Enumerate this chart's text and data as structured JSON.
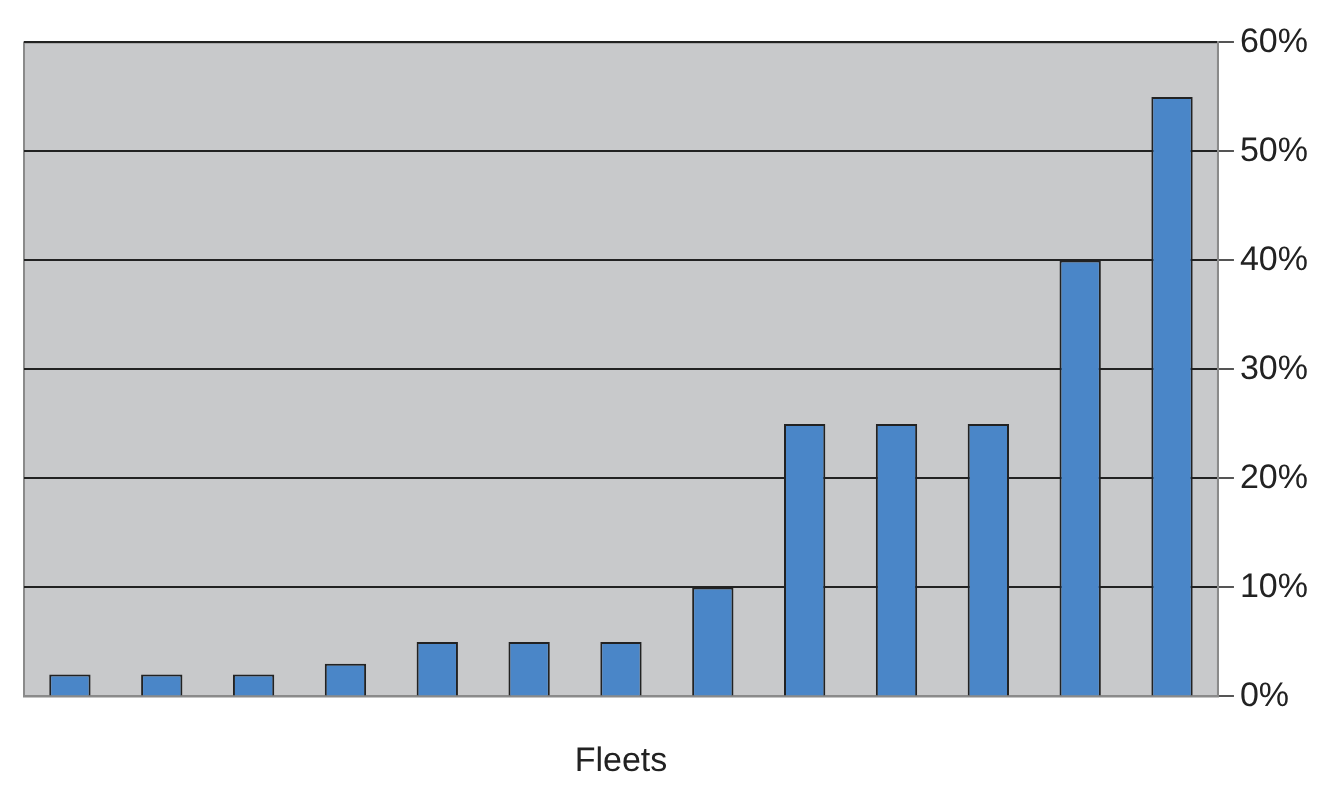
{
  "chart_data": {
    "type": "bar",
    "xlabel": "Fleets",
    "categories": [
      null,
      null,
      null,
      null,
      null,
      null,
      null,
      null,
      null,
      null,
      null,
      null,
      null
    ],
    "values": [
      2,
      2,
      2,
      3,
      5,
      5,
      5,
      10,
      25,
      25,
      25,
      40,
      55
    ],
    "color": "#4a86c8",
    "ylim": [
      0,
      60
    ],
    "yticks": [
      {
        "value": 0,
        "label": "0%"
      },
      {
        "value": 10,
        "label": "10%"
      },
      {
        "value": 20,
        "label": "20%"
      },
      {
        "value": 30,
        "label": "30%"
      },
      {
        "value": 40,
        "label": "40%"
      },
      {
        "value": 50,
        "label": "50%"
      },
      {
        "value": 60,
        "label": "60%"
      }
    ],
    "grid": "y",
    "legend": false
  }
}
